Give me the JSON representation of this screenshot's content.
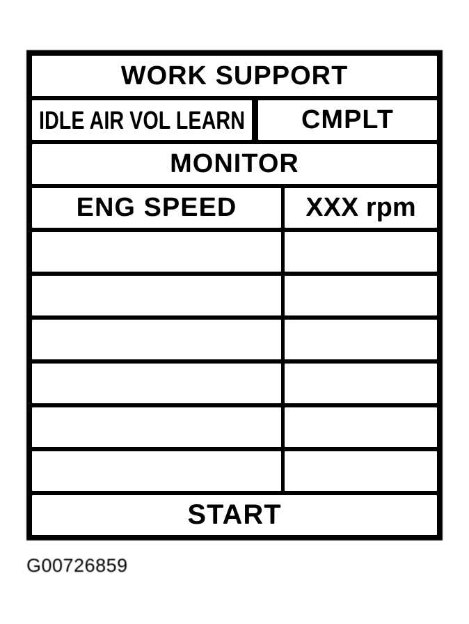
{
  "colors": {
    "ink": "#000000",
    "paper": "#ffffff"
  },
  "scan_tool_screen": {
    "header": "WORK SUPPORT",
    "work_item": {
      "label": "IDLE AIR VOL LEARN",
      "status": "CMPLT"
    },
    "monitor_header": "MONITOR",
    "monitor_rows": [
      {
        "param": "ENG SPEED",
        "value": "XXX rpm"
      }
    ],
    "empty_row_count": 6,
    "action_button": "START"
  },
  "figure_caption": "G00726859"
}
